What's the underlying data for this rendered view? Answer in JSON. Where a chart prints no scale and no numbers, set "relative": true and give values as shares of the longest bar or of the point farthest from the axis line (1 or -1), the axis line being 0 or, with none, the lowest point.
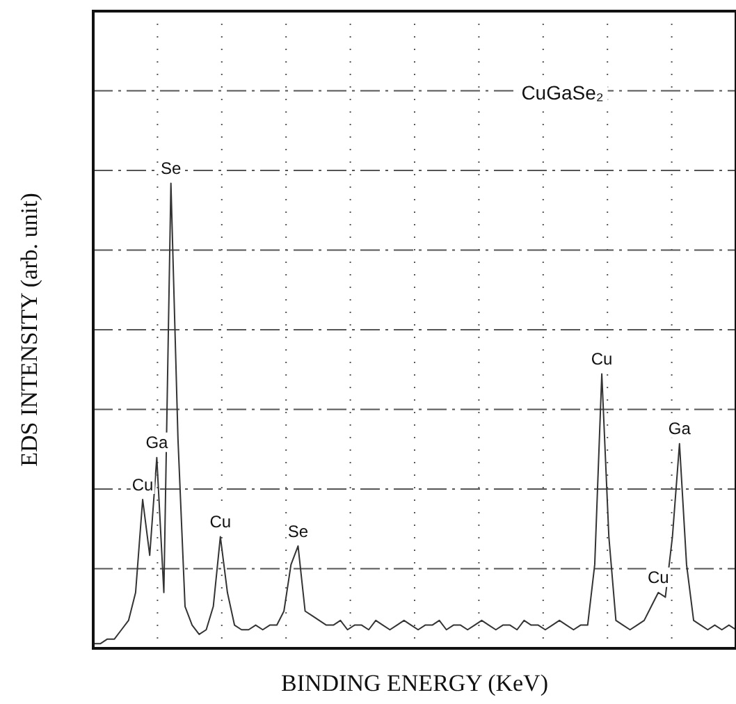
{
  "chart_data": {
    "type": "line",
    "title": "CuGaSe₂",
    "xlabel": "BINDING ENERGY (KeV)",
    "ylabel": "EDS INTENSITY (arb. unit)",
    "relative": true,
    "grid": true,
    "legend": false,
    "marker": "none",
    "line_style": "solid",
    "categories": [
      null,
      null,
      null,
      null,
      null,
      null,
      null,
      null,
      null,
      null,
      null,
      null,
      null,
      null,
      null,
      null,
      null,
      null,
      null,
      null,
      null,
      null,
      null,
      null,
      null,
      null,
      null,
      null,
      null,
      null,
      null,
      null,
      null,
      null,
      null,
      null,
      null,
      null,
      null,
      null,
      null,
      null,
      null,
      null,
      null,
      null,
      null,
      null,
      null,
      null,
      null,
      null,
      null,
      null,
      null,
      null,
      null,
      null,
      null,
      null,
      null,
      null,
      null,
      null,
      null,
      null,
      null,
      null,
      null,
      null,
      null,
      null,
      null,
      null,
      null,
      null,
      null,
      null,
      null,
      null,
      null,
      null,
      null,
      null,
      null,
      null,
      null,
      null,
      null,
      null,
      null,
      null
    ],
    "series": [
      {
        "color": "#333333",
        "values": [
          0.01,
          0.01,
          0.02,
          0.02,
          0.04,
          0.06,
          0.12,
          0.32,
          0.2,
          0.41,
          0.12,
          1,
          0.45,
          0.09,
          0.05,
          0.03,
          0.04,
          0.09,
          0.24,
          0.12,
          0.05,
          0.04,
          0.04,
          0.05,
          0.04,
          0.05,
          0.05,
          0.08,
          0.18,
          0.22,
          0.08,
          0.07,
          0.06,
          0.05,
          0.05,
          0.06,
          0.04,
          0.05,
          0.05,
          0.04,
          0.06,
          0.05,
          0.04,
          0.05,
          0.06,
          0.05,
          0.04,
          0.05,
          0.05,
          0.06,
          0.04,
          0.05,
          0.05,
          0.04,
          0.05,
          0.06,
          0.05,
          0.04,
          0.05,
          0.05,
          0.04,
          0.06,
          0.05,
          0.05,
          0.04,
          0.05,
          0.06,
          0.05,
          0.04,
          0.05,
          0.05,
          0.18,
          0.59,
          0.24,
          0.06,
          0.05,
          0.04,
          0.05,
          0.06,
          0.09,
          0.12,
          0.11,
          0.24,
          0.44,
          0.18,
          0.06,
          0.05,
          0.04,
          0.05,
          0.04,
          0.05,
          0.04
        ]
      }
    ],
    "annotations": [
      "Cu",
      "Ga",
      "Se",
      "Cu",
      "Se",
      "Cu",
      "Cu",
      "Ga"
    ]
  }
}
